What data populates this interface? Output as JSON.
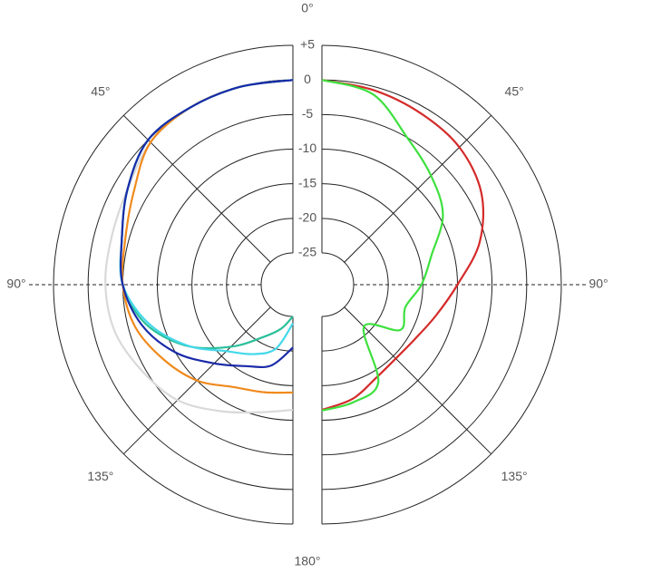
{
  "chart_data": {
    "type": "polar",
    "rlim": [
      -25,
      5
    ],
    "rticks": [
      {
        "value": 5,
        "label": "+5"
      },
      0,
      -5,
      -10,
      -15,
      -20,
      -25
    ],
    "thetaticks": [
      {
        "value": 0,
        "label": "0°"
      },
      {
        "value": 45,
        "label": "45°"
      },
      {
        "value": 90,
        "label": "90°"
      },
      {
        "value": 135,
        "label": "135°"
      },
      {
        "value": 180,
        "label": "180°"
      }
    ],
    "theta": [
      0,
      15,
      30,
      45,
      60,
      75,
      90,
      105,
      120,
      135,
      150,
      165,
      180
    ],
    "series": [
      {
        "side": "left",
        "color": "#d9d9d9",
        "values": [
          0,
          0,
          0,
          -0.5,
          -2,
          -2.5,
          -2.5,
          -3,
          -4.5,
          -6,
          -8.5,
          -10.5,
          -11.5
        ]
      },
      {
        "side": "left",
        "color": "#f08a1c",
        "values": [
          0,
          0,
          0,
          -0.5,
          -3,
          -4.5,
          -5,
          -6,
          -8,
          -10,
          -12.5,
          -13.5,
          -14
        ]
      },
      {
        "side": "left",
        "color": "#2bbf9a",
        "values": [
          0,
          0,
          0,
          0,
          -2,
          -4,
          -5,
          -7.6,
          -11.9,
          -16.9,
          -20.8,
          -23,
          -25
        ]
      },
      {
        "side": "left",
        "color": "#44d8ea",
        "values": [
          0,
          0,
          0,
          0,
          -2,
          -4,
          -5,
          -8,
          -12,
          -16,
          -18,
          -20,
          -24
        ]
      },
      {
        "side": "left",
        "color": "#1a2aa8",
        "values": [
          0,
          0,
          0,
          0,
          -2,
          -4,
          -5,
          -7,
          -10,
          -13.5,
          -16,
          -17.5,
          -20.5
        ]
      },
      {
        "side": "right",
        "color": "#d42a2a",
        "values": [
          0,
          -0.5,
          -1,
          -1.5,
          -3,
          -6,
          -10,
          -12.5,
          -14,
          -14.5,
          -14,
          -12.5,
          -11.5
        ]
      },
      {
        "side": "right",
        "color": "#3ee03e",
        "values": [
          0,
          -1.1,
          -5,
          -7.3,
          -9.4,
          -13.2,
          -15.2,
          -17.1,
          -16.5,
          -21,
          -13.3,
          -12,
          -11.4
        ]
      }
    ]
  }
}
